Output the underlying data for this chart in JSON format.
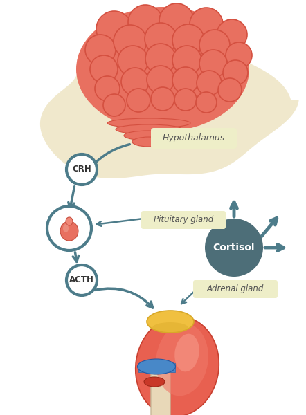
{
  "bg_color": "#ffffff",
  "head_color": "#f0e8cc",
  "brain_fill": "#e87060",
  "brain_gyri_fill": "#e87060",
  "brain_gyri_edge": "#d45040",
  "brain_stem_fill": "#e87060",
  "teal": "#4d7c8a",
  "teal_dark": "#3d6b78",
  "white": "#ffffff",
  "label_bg": "#eeeec8",
  "label_text": "#555555",
  "cortisol_fill": "#4d6e78",
  "cortisol_text": "#ffffff",
  "kidney_outer": "#e86050",
  "kidney_inner": "#f07868",
  "kidney_highlight": "#f8a090",
  "adrenal_yellow": "#f0c040",
  "adrenal_yellow_dark": "#d8a828",
  "ureter_fill": "#e8d8b8",
  "ureter_edge": "#c8b898",
  "blue_vessel": "#4888c8",
  "red_vessel": "#c83828",
  "pituitary_body": "#e87060",
  "pituitary_dark": "#c85040",
  "labels": {
    "hypothalamus": "Hypothalamus",
    "crh": "CRH",
    "pituitary": "Pituitary gland",
    "acth": "ACTH",
    "cortisol": "Cortisol",
    "adrenal": "Adrenal gland"
  }
}
